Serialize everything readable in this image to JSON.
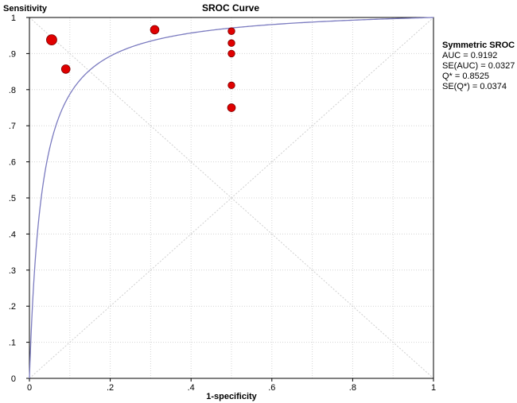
{
  "chart_data": {
    "type": "scatter",
    "title": "SROC Curve",
    "xlabel": "1-specificity",
    "ylabel": "Sensitivity",
    "xlim": [
      0,
      1
    ],
    "ylim": [
      0,
      1
    ],
    "x_ticks": [
      "0",
      ".2",
      ".4",
      ".6",
      ".8",
      "1"
    ],
    "y_ticks": [
      "0",
      ".1",
      ".2",
      ".3",
      ".4",
      ".5",
      ".6",
      ".7",
      ".8",
      ".9",
      "1"
    ],
    "grid": true,
    "legend": {
      "title": "Symmetric SROC",
      "position": "right",
      "lines": [
        "AUC = 0.9192",
        "SE(AUC) = 0.0327",
        "Q* = 0.8525",
        "SE(Q*) = 0.0374"
      ]
    },
    "curve": {
      "type": "symmetric-sroc",
      "dor": 33.34,
      "color": "#7b7bc0"
    },
    "points": [
      {
        "x": 0.055,
        "y": 0.938,
        "weight": 3
      },
      {
        "x": 0.09,
        "y": 0.857,
        "weight": 2
      },
      {
        "x": 0.31,
        "y": 0.966,
        "weight": 2
      },
      {
        "x": 0.5,
        "y": 0.962,
        "weight": 1
      },
      {
        "x": 0.5,
        "y": 0.929,
        "weight": 1
      },
      {
        "x": 0.5,
        "y": 0.9,
        "weight": 1
      },
      {
        "x": 0.5,
        "y": 0.812,
        "weight": 1
      },
      {
        "x": 0.5,
        "y": 0.75,
        "weight": 1.6
      }
    ],
    "point_color": "#e00000"
  }
}
